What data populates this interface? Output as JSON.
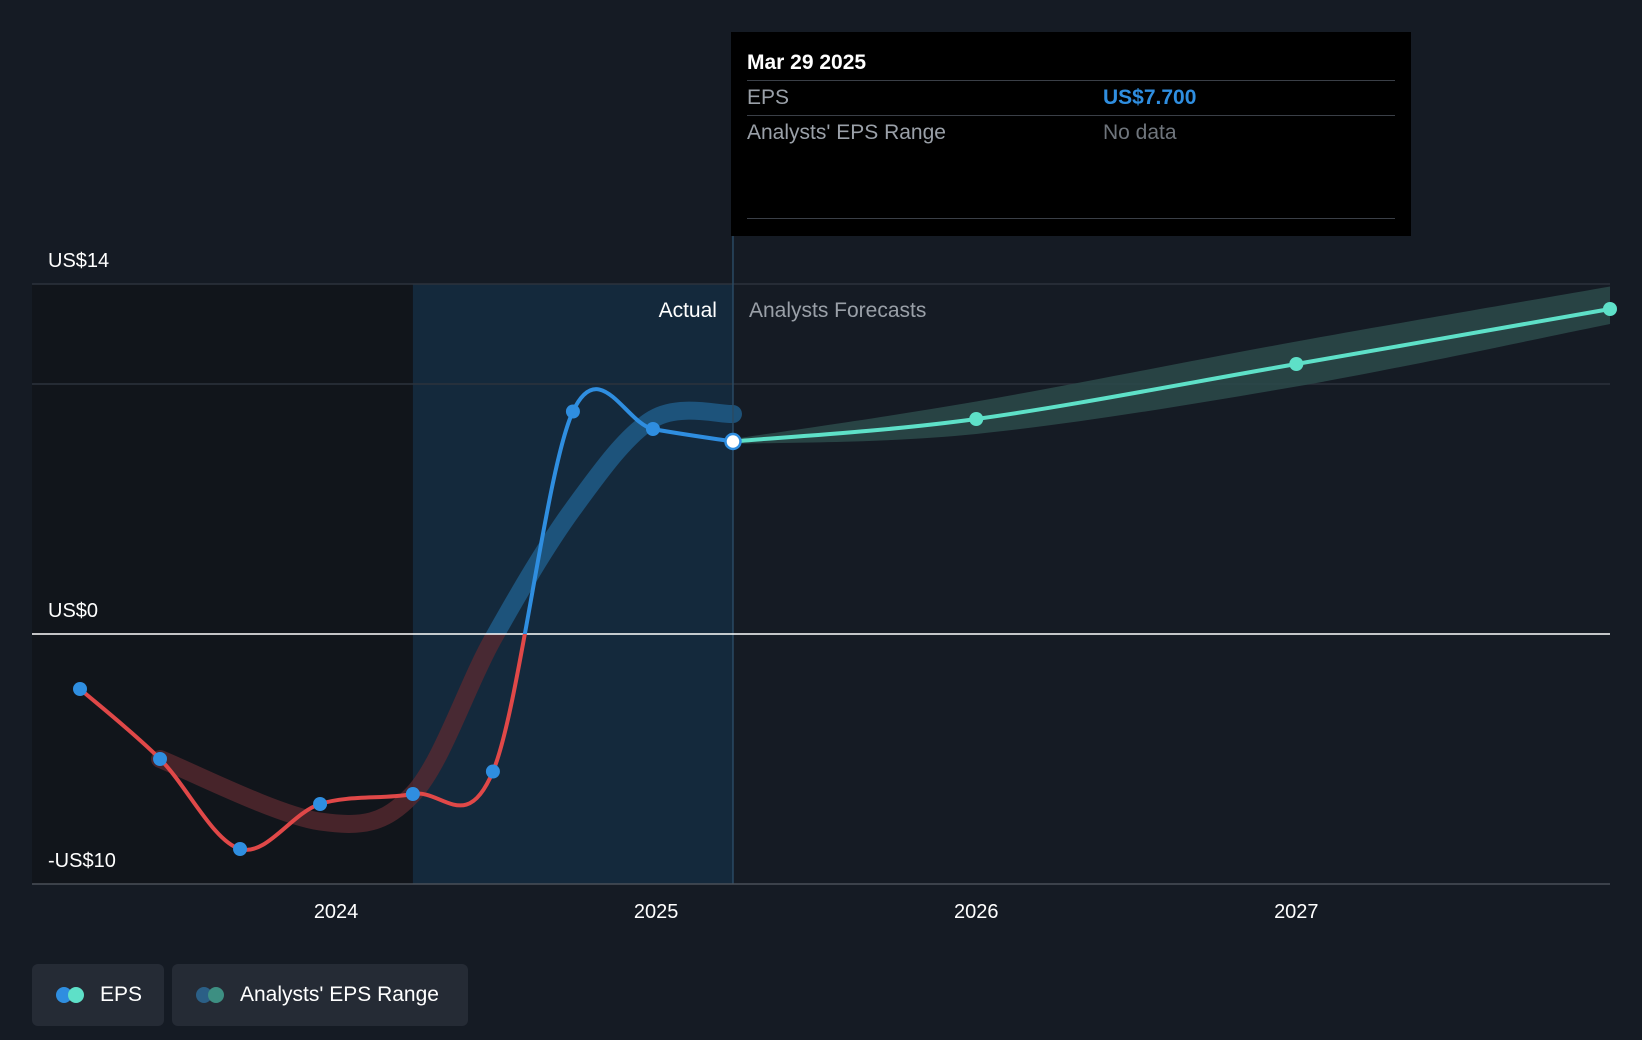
{
  "chart_data": {
    "type": "line",
    "title": "",
    "y_axis": {
      "min": -10,
      "max": 14,
      "unit": "US$",
      "labels": [
        "US$14",
        "US$0",
        "-US$10"
      ],
      "gridlines": [
        14,
        10,
        0,
        -10
      ]
    },
    "x_axis": {
      "range": [
        2023.05,
        2027.98
      ],
      "tick_values": [
        2024,
        2025,
        2026,
        2027
      ],
      "tick_labels": [
        "2024",
        "2025",
        "2026",
        "2027"
      ]
    },
    "series": [
      {
        "name": "EPS",
        "kind": "actual",
        "points": [
          {
            "x": 2023.2,
            "y": -2.2
          },
          {
            "x": 2023.45,
            "y": -5.0
          },
          {
            "x": 2023.7,
            "y": -8.6
          },
          {
            "x": 2023.95,
            "y": -6.8
          },
          {
            "x": 2024.24,
            "y": -6.4
          },
          {
            "x": 2024.49,
            "y": -5.5
          },
          {
            "x": 2024.74,
            "y": 8.9
          },
          {
            "x": 2024.99,
            "y": 8.2
          },
          {
            "x": 2025.24,
            "y": 7.7
          }
        ]
      },
      {
        "name": "EPS",
        "kind": "forecast",
        "points": [
          {
            "x": 2025.24,
            "y": 7.7
          },
          {
            "x": 2026.0,
            "y": 8.6
          },
          {
            "x": 2027.0,
            "y": 10.8
          },
          {
            "x": 2027.98,
            "y": 13.0
          }
        ]
      },
      {
        "name": "Analysts' EPS Range",
        "kind": "forecast_range",
        "points": [
          {
            "x": 2025.24,
            "low": 7.6,
            "high": 7.8
          },
          {
            "x": 2026.0,
            "low": 8.0,
            "high": 9.3
          },
          {
            "x": 2027.0,
            "low": 9.9,
            "high": 11.7
          },
          {
            "x": 2027.98,
            "low": 12.4,
            "high": 13.9
          }
        ]
      },
      {
        "name": "Analysts' EPS Range",
        "kind": "past_consensus_band",
        "points": [
          {
            "x": 2023.45,
            "y": -5.0
          },
          {
            "x": 2023.95,
            "y": -7.5
          },
          {
            "x": 2024.24,
            "y": -6.4
          },
          {
            "x": 2024.49,
            "y": -0.2
          },
          {
            "x": 2024.74,
            "y": 5.0
          },
          {
            "x": 2024.99,
            "y": 8.6
          },
          {
            "x": 2025.24,
            "y": 8.8
          }
        ]
      }
    ],
    "regions": {
      "past_shade_start": 2024.24,
      "actual_end": 2025.24,
      "actual_label": "Actual",
      "forecast_label": "Analysts Forecasts"
    },
    "tooltip": {
      "date": "Mar 29 2025",
      "rows": [
        {
          "label": "EPS",
          "value": "US$7.700"
        },
        {
          "label": "Analysts' EPS Range",
          "value": "No data"
        }
      ]
    },
    "legend": [
      {
        "label": "EPS",
        "colors": [
          "#2f8ee0",
          "#5ee0c8"
        ]
      },
      {
        "label": "Analysts' EPS Range",
        "colors": [
          "#2b5f86",
          "#3d8f82"
        ]
      }
    ],
    "colors": {
      "background": "#151b24",
      "positive_actual": "#2f8ee0",
      "negative_actual": "#e04848",
      "forecast": "#5ee0c8",
      "forecast_band": "#2b4a4a",
      "actual_shade": "#14293c",
      "past_shade": "#11151b"
    }
  }
}
